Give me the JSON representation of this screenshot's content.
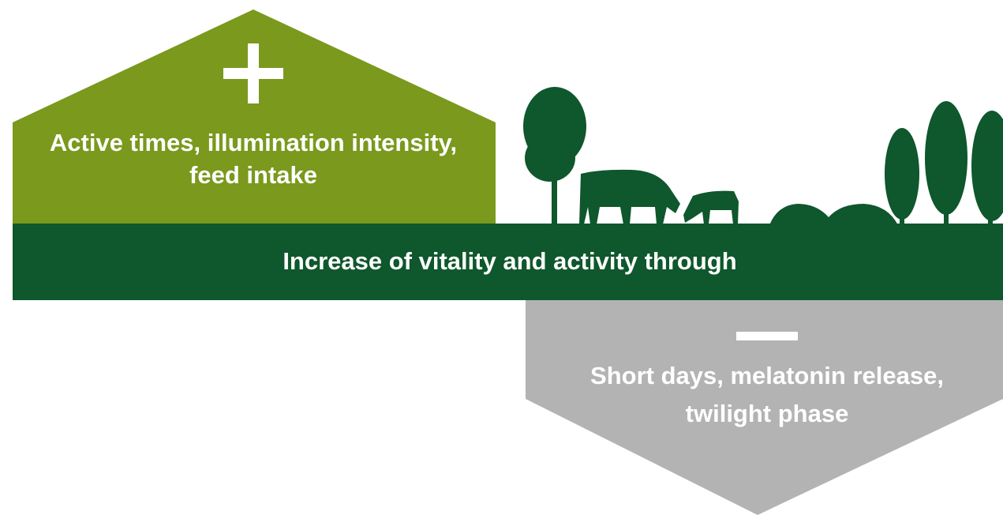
{
  "plus_box": {
    "lines": [
      "Active times, illumination intensity,",
      "feed intake"
    ]
  },
  "band": {
    "text": "Increase of vitality and activity through"
  },
  "minus_box": {
    "lines": [
      "Short days, melatonin release,",
      "twilight phase"
    ]
  }
}
